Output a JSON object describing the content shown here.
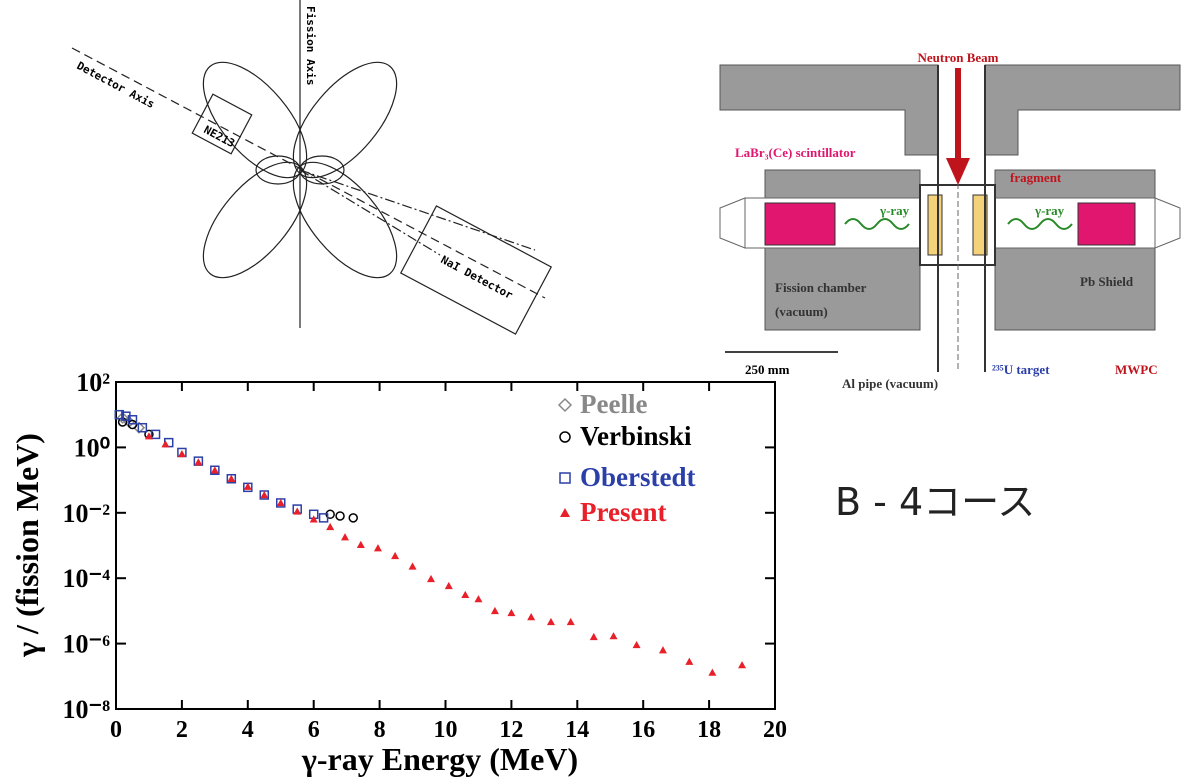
{
  "angle_diagram": {
    "labels": [
      "Fission Axis",
      "Detector Axis",
      "NE213",
      "NaI Detector"
    ]
  },
  "schematic": {
    "labels": [
      "Neutron Beam",
      "LaBr₃(Ce) scintillator",
      "fragment",
      "γ-ray",
      "γ-ray",
      "Fission chamber",
      "(vacuum)",
      "Pb Shield",
      "250 mm",
      "Al pipe (vacuum)",
      "²³⁵U target",
      "MWPC"
    ]
  },
  "course_label": "B - 4コース",
  "chart_data": {
    "type": "scatter",
    "y_label": "γ / (fission MeV)",
    "x_label": "γ-ray Energy (MeV)",
    "xlim": [
      0,
      20
    ],
    "ylim": [
      1e-08,
      100
    ],
    "log_y": true,
    "xticks": [
      0,
      2,
      4,
      6,
      8,
      10,
      12,
      14,
      16,
      18,
      20
    ],
    "yticks": [
      {
        "value": 1e-08,
        "label": "10⁻⁸"
      },
      {
        "value": 1e-06,
        "label": "10⁻⁶"
      },
      {
        "value": 0.0001,
        "label": "10⁻⁴"
      },
      {
        "value": 0.01,
        "label": "10⁻²"
      },
      {
        "value": 1,
        "label": "10⁰"
      },
      {
        "value": 100,
        "label": "10²"
      }
    ],
    "legend": "top-right",
    "series": [
      {
        "name": "Peelle",
        "color": "#888888",
        "marker": "diamond",
        "x": [
          0.2,
          0.4,
          0.7
        ],
        "values": [
          8,
          6,
          4
        ]
      },
      {
        "name": "Verbinski",
        "color": "#000000",
        "marker": "circle",
        "x": [
          0.2,
          0.5,
          1,
          6.5,
          6.8,
          7.2
        ],
        "values": [
          6,
          5,
          2.5,
          0.009,
          0.008,
          0.007
        ]
      },
      {
        "name": "Oberstedt",
        "color": "#2b3fa8",
        "marker": "square",
        "x": [
          0.1,
          0.3,
          0.5,
          0.8,
          1.2,
          1.6,
          2,
          2.5,
          3,
          3.5,
          4,
          4.5,
          5,
          5.5,
          6,
          6.3
        ],
        "values": [
          10,
          9,
          7,
          4,
          2.5,
          1.4,
          0.7,
          0.38,
          0.2,
          0.11,
          0.06,
          0.035,
          0.02,
          0.013,
          0.009,
          0.007
        ]
      },
      {
        "name": "Present",
        "color": "#e8202a",
        "marker": "triangle",
        "x": [
          1,
          1.5,
          2,
          2.5,
          3,
          3.5,
          4,
          4.5,
          5,
          5.5,
          6,
          6.5,
          6.95,
          7.43,
          7.95,
          8.47,
          9,
          9.56,
          10.1,
          10.6,
          11,
          11.5,
          12,
          12.6,
          13.2,
          13.8,
          14.5,
          15.1,
          15.8,
          16.6,
          17.4,
          18.1,
          19
        ],
        "values": [
          2.2,
          1.26,
          0.63,
          0.35,
          0.2,
          0.11,
          0.063,
          0.035,
          0.02,
          0.011,
          0.0063,
          0.0037,
          0.0018,
          0.00105,
          0.00083,
          0.00048,
          0.00023,
          9.5e-05,
          5.8e-05,
          3.1e-05,
          2.3e-05,
          1e-05,
          8.7e-06,
          6.5e-06,
          4.6e-06,
          4.6e-06,
          1.6e-06,
          1.7e-06,
          9.1e-07,
          6.3e-07,
          2.8e-07,
          1.3e-07,
          2.2e-07
        ]
      }
    ]
  }
}
